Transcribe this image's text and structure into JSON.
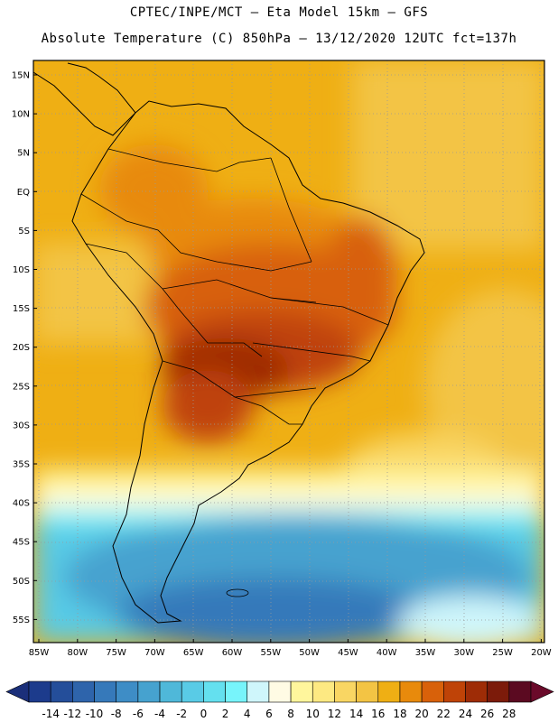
{
  "title_line1": "CPTEC/INPE/MCT —  Eta Model 15km — GFS",
  "title_line2": "Absolute Temperature (C) 850hPa — 13/12/2020 12UTC fct=137h",
  "map": {
    "lat_labels": [
      "15N",
      "10N",
      "5N",
      "EQ",
      "5S",
      "10S",
      "15S",
      "20S",
      "25S",
      "30S",
      "35S",
      "40S",
      "45S",
      "50S",
      "55S"
    ],
    "lon_labels": [
      "85W",
      "80W",
      "75W",
      "70W",
      "65W",
      "60W",
      "55W",
      "50W",
      "45W",
      "40W",
      "35W",
      "30W",
      "25W",
      "20W"
    ],
    "region": "South America"
  },
  "colorbar": {
    "labels": [
      "-14",
      "-12",
      "-10",
      "-8",
      "-6",
      "-4",
      "-2",
      "0",
      "2",
      "4",
      "6",
      "8",
      "10",
      "12",
      "14",
      "16",
      "18",
      "20",
      "22",
      "24",
      "26",
      "28"
    ],
    "colors": [
      "#1c3b8c",
      "#244e9a",
      "#2e64ab",
      "#3679ba",
      "#3e8dc6",
      "#46a2cf",
      "#4fb8d9",
      "#59cbe6",
      "#64e0ef",
      "#77f4fb",
      "#cff6fb",
      "#fffbe4",
      "#fff69c",
      "#fde982",
      "#f9d663",
      "#f3c444",
      "#efaf14",
      "#e88a0c",
      "#d8610a",
      "#bf4307",
      "#9e2c06",
      "#7c1b0a",
      "#5b0a21"
    ],
    "underflow_color": "#1b2f7a",
    "overflow_color": "#6a0a2a"
  }
}
